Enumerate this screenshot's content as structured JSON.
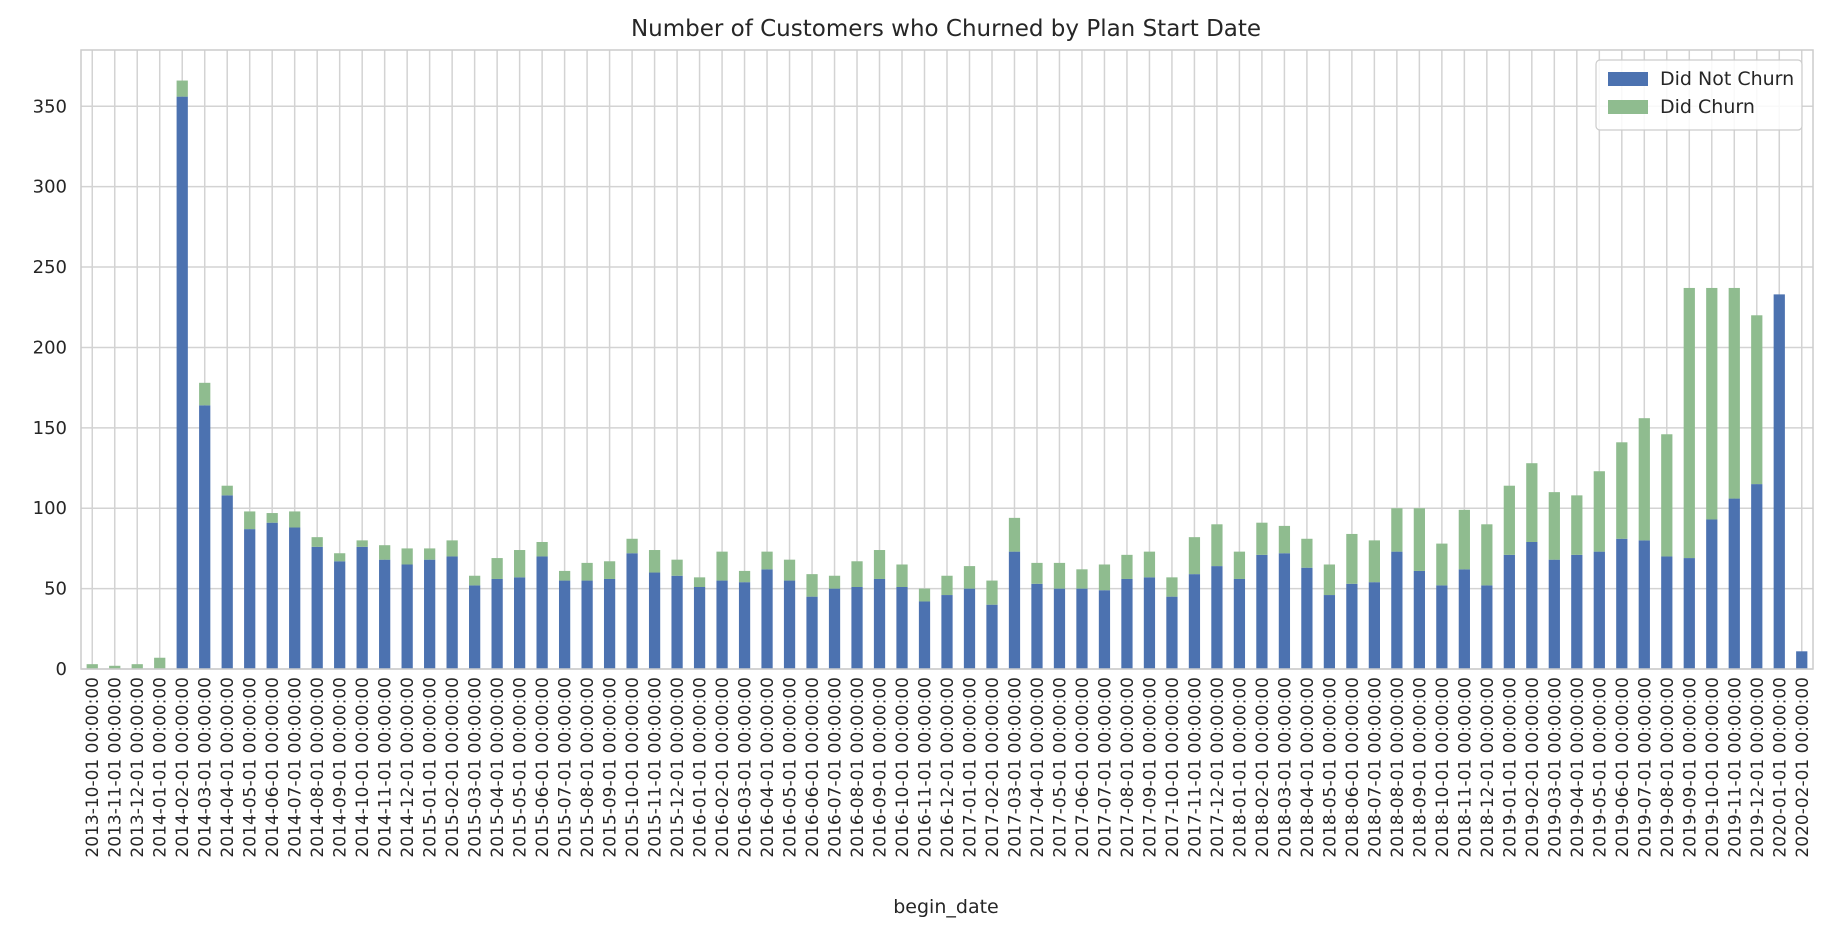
{
  "chart_data": {
    "type": "bar",
    "stacked": true,
    "title": "Number of Customers who Churned by Plan Start Date",
    "xlabel": "begin_date",
    "ylabel": "",
    "ylim": [
      0,
      385
    ],
    "yticks": [
      0,
      50,
      100,
      150,
      200,
      250,
      300,
      350
    ],
    "grid": true,
    "legend_position": "top-right",
    "categories": [
      "2013-10-01 00:00:00",
      "2013-11-01 00:00:00",
      "2013-12-01 00:00:00",
      "2014-01-01 00:00:00",
      "2014-02-01 00:00:00",
      "2014-03-01 00:00:00",
      "2014-04-01 00:00:00",
      "2014-05-01 00:00:00",
      "2014-06-01 00:00:00",
      "2014-07-01 00:00:00",
      "2014-08-01 00:00:00",
      "2014-09-01 00:00:00",
      "2014-10-01 00:00:00",
      "2014-11-01 00:00:00",
      "2014-12-01 00:00:00",
      "2015-01-01 00:00:00",
      "2015-02-01 00:00:00",
      "2015-03-01 00:00:00",
      "2015-04-01 00:00:00",
      "2015-05-01 00:00:00",
      "2015-06-01 00:00:00",
      "2015-07-01 00:00:00",
      "2015-08-01 00:00:00",
      "2015-09-01 00:00:00",
      "2015-10-01 00:00:00",
      "2015-11-01 00:00:00",
      "2015-12-01 00:00:00",
      "2016-01-01 00:00:00",
      "2016-02-01 00:00:00",
      "2016-03-01 00:00:00",
      "2016-04-01 00:00:00",
      "2016-05-01 00:00:00",
      "2016-06-01 00:00:00",
      "2016-07-01 00:00:00",
      "2016-08-01 00:00:00",
      "2016-09-01 00:00:00",
      "2016-10-01 00:00:00",
      "2016-11-01 00:00:00",
      "2016-12-01 00:00:00",
      "2017-01-01 00:00:00",
      "2017-02-01 00:00:00",
      "2017-03-01 00:00:00",
      "2017-04-01 00:00:00",
      "2017-05-01 00:00:00",
      "2017-06-01 00:00:00",
      "2017-07-01 00:00:00",
      "2017-08-01 00:00:00",
      "2017-09-01 00:00:00",
      "2017-10-01 00:00:00",
      "2017-11-01 00:00:00",
      "2017-12-01 00:00:00",
      "2018-01-01 00:00:00",
      "2018-02-01 00:00:00",
      "2018-03-01 00:00:00",
      "2018-04-01 00:00:00",
      "2018-05-01 00:00:00",
      "2018-06-01 00:00:00",
      "2018-07-01 00:00:00",
      "2018-08-01 00:00:00",
      "2018-09-01 00:00:00",
      "2018-10-01 00:00:00",
      "2018-11-01 00:00:00",
      "2018-12-01 00:00:00",
      "2019-01-01 00:00:00",
      "2019-02-01 00:00:00",
      "2019-03-01 00:00:00",
      "2019-04-01 00:00:00",
      "2019-05-01 00:00:00",
      "2019-06-01 00:00:00",
      "2019-07-01 00:00:00",
      "2019-08-01 00:00:00",
      "2019-09-01 00:00:00",
      "2019-10-01 00:00:00",
      "2019-11-01 00:00:00",
      "2019-12-01 00:00:00",
      "2020-01-01 00:00:00",
      "2020-02-01 00:00:00"
    ],
    "series": [
      {
        "name": "Did Not Churn",
        "color": "#4c72b0",
        "values": [
          0,
          0,
          0,
          0,
          356,
          164,
          108,
          87,
          91,
          88,
          76,
          67,
          76,
          68,
          65,
          68,
          70,
          52,
          56,
          57,
          70,
          55,
          55,
          56,
          72,
          60,
          58,
          51,
          55,
          54,
          62,
          55,
          45,
          50,
          51,
          56,
          51,
          42,
          46,
          50,
          40,
          73,
          53,
          50,
          50,
          49,
          56,
          57,
          45,
          59,
          64,
          56,
          71,
          72,
          63,
          46,
          53,
          54,
          73,
          61,
          52,
          62,
          52,
          71,
          79,
          68,
          71,
          73,
          81,
          80,
          70,
          69,
          93,
          106,
          115,
          233,
          11
        ]
      },
      {
        "name": "Did Churn",
        "color": "#8fbc8f",
        "values": [
          3,
          2,
          3,
          7,
          10,
          14,
          6,
          11,
          6,
          10,
          6,
          5,
          4,
          9,
          10,
          7,
          10,
          6,
          13,
          17,
          9,
          6,
          11,
          11,
          9,
          14,
          10,
          6,
          18,
          7,
          11,
          13,
          14,
          8,
          16,
          18,
          14,
          8,
          12,
          14,
          15,
          21,
          13,
          16,
          12,
          16,
          15,
          16,
          12,
          23,
          26,
          17,
          20,
          17,
          18,
          19,
          31,
          26,
          27,
          39,
          26,
          37,
          38,
          43,
          49,
          42,
          37,
          50,
          60,
          76,
          76,
          168,
          144,
          131,
          105,
          0,
          0
        ]
      }
    ]
  }
}
